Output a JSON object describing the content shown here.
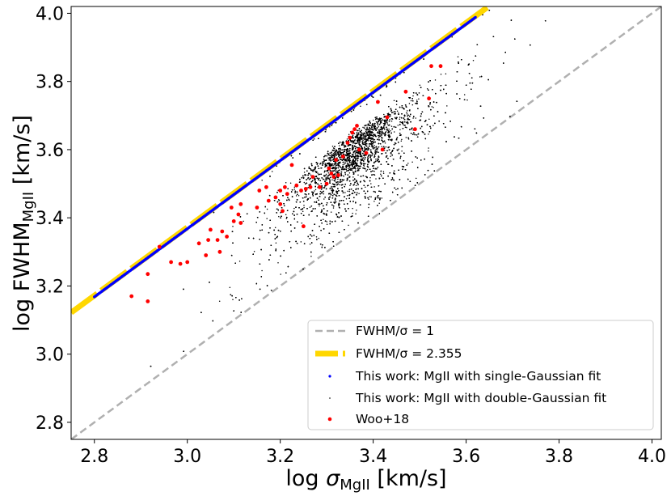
{
  "chart_data": {
    "type": "scatter",
    "xlabel": {
      "main": "log ",
      "symbol": "σ",
      "subscript": "MgII",
      "unit": " [km/s]"
    },
    "ylabel": {
      "main": "log FWHM",
      "subscript": "MgII",
      "unit": " [km/s]"
    },
    "xlim": [
      2.75,
      4.02
    ],
    "ylim": [
      2.75,
      4.02
    ],
    "xticks": [
      2.8,
      3.0,
      3.2,
      3.4,
      3.6,
      3.8,
      4.0
    ],
    "yticks": [
      2.8,
      3.0,
      3.2,
      3.4,
      3.6,
      3.8,
      4.0
    ],
    "xtick_labels": [
      "2.8",
      "3.0",
      "3.2",
      "3.4",
      "3.6",
      "3.8",
      "4.0"
    ],
    "ytick_labels": [
      "2.8",
      "3.0",
      "3.2",
      "3.4",
      "3.6",
      "3.8",
      "4.0"
    ],
    "lines": [
      {
        "name": "FWHM/σ = 1",
        "offset": 0.0,
        "color": "#b0b0b0",
        "style": "dashed"
      },
      {
        "name": "FWHM/σ = 2.355",
        "offset": 0.372,
        "color": "#ffd700",
        "style": "dashed-thick"
      }
    ],
    "series": [
      {
        "name": "single-gaussian",
        "color": "#0000ff",
        "x_range": [
          2.8,
          3.62
        ],
        "offset": 0.372
      },
      {
        "name": "double-gaussian",
        "color": "#000000",
        "center": [
          3.36,
          3.62
        ],
        "count": 9000
      },
      {
        "name": "woo18",
        "color": "#ff0000",
        "points": [
          [
            2.88,
            3.17
          ],
          [
            2.915,
            3.155
          ],
          [
            2.915,
            3.235
          ],
          [
            2.94,
            3.315
          ],
          [
            2.965,
            3.27
          ],
          [
            2.985,
            3.265
          ],
          [
            3.0,
            3.27
          ],
          [
            3.025,
            3.325
          ],
          [
            3.04,
            3.29
          ],
          [
            3.045,
            3.335
          ],
          [
            3.05,
            3.365
          ],
          [
            3.065,
            3.335
          ],
          [
            3.07,
            3.3
          ],
          [
            3.075,
            3.36
          ],
          [
            3.085,
            3.345
          ],
          [
            3.095,
            3.43
          ],
          [
            3.1,
            3.39
          ],
          [
            3.11,
            3.41
          ],
          [
            3.115,
            3.385
          ],
          [
            3.115,
            3.44
          ],
          [
            3.15,
            3.43
          ],
          [
            3.155,
            3.48
          ],
          [
            3.17,
            3.49
          ],
          [
            3.175,
            3.45
          ],
          [
            3.19,
            3.46
          ],
          [
            3.2,
            3.44
          ],
          [
            3.2,
            3.48
          ],
          [
            3.205,
            3.42
          ],
          [
            3.21,
            3.49
          ],
          [
            3.215,
            3.47
          ],
          [
            3.225,
            3.555
          ],
          [
            3.235,
            3.495
          ],
          [
            3.245,
            3.48
          ],
          [
            3.255,
            3.485
          ],
          [
            3.25,
            3.375
          ],
          [
            3.265,
            3.49
          ],
          [
            3.27,
            3.52
          ],
          [
            3.285,
            3.49
          ],
          [
            3.3,
            3.5
          ],
          [
            3.305,
            3.545
          ],
          [
            3.31,
            3.53
          ],
          [
            3.315,
            3.52
          ],
          [
            3.32,
            3.57
          ],
          [
            3.325,
            3.525
          ],
          [
            3.335,
            3.58
          ],
          [
            3.345,
            3.62
          ],
          [
            3.35,
            3.635
          ],
          [
            3.355,
            3.65
          ],
          [
            3.36,
            3.66
          ],
          [
            3.365,
            3.67
          ],
          [
            3.37,
            3.6
          ],
          [
            3.385,
            3.59
          ],
          [
            3.41,
            3.74
          ],
          [
            3.42,
            3.6
          ],
          [
            3.43,
            3.695
          ],
          [
            3.47,
            3.77
          ],
          [
            3.49,
            3.66
          ],
          [
            3.52,
            3.75
          ],
          [
            3.525,
            3.845
          ],
          [
            3.545,
            3.845
          ]
        ]
      }
    ],
    "legend": {
      "position": "lower-right",
      "entries": [
        {
          "key": "dashed-gray",
          "label": "FWHM/σ = 1"
        },
        {
          "key": "dashed-gold",
          "label": "FWHM/σ = 2.355"
        },
        {
          "key": "blue-dot",
          "label": "This work: MgII with single-Gaussian fit"
        },
        {
          "key": "black-dot",
          "label": "This work: MgII with double-Gaussian fit"
        },
        {
          "key": "red-dot",
          "label": "Woo+18"
        }
      ]
    }
  }
}
